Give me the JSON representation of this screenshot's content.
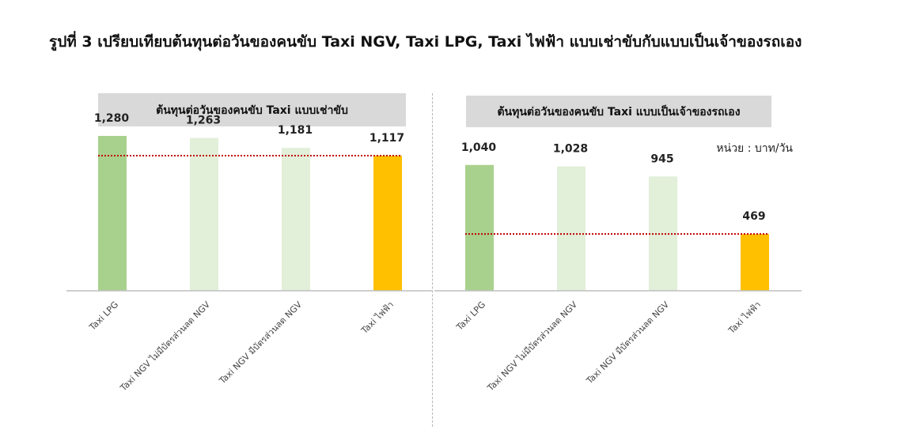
{
  "figure": {
    "title": "รูปที่ 3 เปรียบเทียบต้นทุนต่อวันของคนขับ Taxi NGV, Taxi LPG, Taxi ไฟฟ้า แบบเช่าขับกับแบบเป็นเจ้าของรถเอง"
  },
  "colors": {
    "lpg": "#a9d18e",
    "ngv": "#e2efd9",
    "ev": "#ffc000",
    "panel_title_bg": "#d9d9d9",
    "reference_line": "#c00000",
    "axis": "#bfbfbf"
  },
  "chart_data": [
    {
      "type": "bar",
      "title": "ต้นทุนต่อวันของคนขับ Taxi แบบเช่าขับ",
      "categories": [
        "Taxi LPG",
        "Taxi NGV ไม่มีบัตรส่วนลด NGV",
        "Taxi NGV มีบัตรส่วนลด NGV",
        "Taxi ไฟฟ้า"
      ],
      "values": [
        1280,
        1263,
        1181,
        1117
      ],
      "value_labels": [
        "1,280",
        "1,263",
        "1,181",
        "1,117"
      ],
      "bar_colors": [
        "#a9d18e",
        "#e2efd9",
        "#e2efd9",
        "#ffc000"
      ],
      "reference_line": 1117,
      "unit": "",
      "ylim": [
        0,
        1600
      ]
    },
    {
      "type": "bar",
      "title": "ต้นทุนต่อวันของคนขับ Taxi แบบเป็นเจ้าของรถเอง",
      "categories": [
        "Taxi LPG",
        "Taxi NGV ไม่มีบัตรส่วนลด NGV",
        "Taxi NGV มีบัตรส่วนลด NGV",
        "Taxi ไฟฟ้า"
      ],
      "values": [
        1040,
        1028,
        945,
        469
      ],
      "value_labels": [
        "1,040",
        "1,028",
        "945",
        "469"
      ],
      "bar_colors": [
        "#a9d18e",
        "#e2efd9",
        "#e2efd9",
        "#ffc000"
      ],
      "reference_line": 469,
      "unit": "หน่วย : บาท/วัน",
      "ylim": [
        0,
        1600
      ]
    }
  ]
}
